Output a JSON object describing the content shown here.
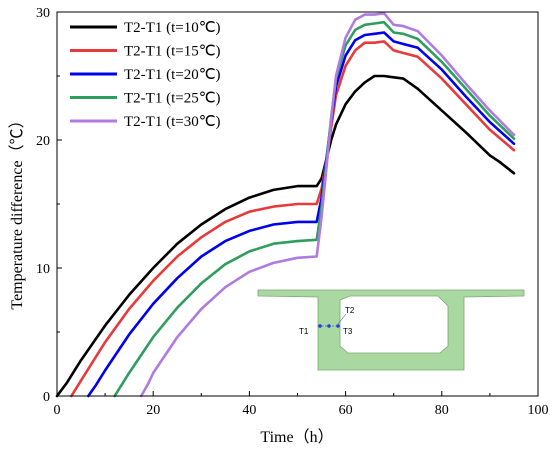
{
  "chart_data": {
    "type": "line",
    "xlabel": "Time（h）",
    "ylabel": "Temperature difference（℃）",
    "xlim": [
      0,
      100
    ],
    "ylim": [
      0,
      30
    ],
    "xticks": [
      "0",
      "20",
      "40",
      "60",
      "80",
      "100"
    ],
    "yticks": [
      "0",
      "10",
      "20",
      "30"
    ],
    "grid": false,
    "legend_position": "top-left",
    "series": [
      {
        "name": "T2-T1 (t=10℃)",
        "color": "#000000",
        "x": [
          0,
          2,
          5,
          10,
          15,
          20,
          25,
          30,
          35,
          40,
          45,
          50,
          54,
          55,
          56,
          57,
          58,
          60,
          62,
          64,
          66,
          68,
          70,
          72,
          75,
          80,
          85,
          90,
          92,
          95
        ],
        "y": [
          0,
          1.0,
          2.8,
          5.5,
          7.9,
          10.0,
          11.9,
          13.4,
          14.6,
          15.5,
          16.1,
          16.4,
          16.4,
          17.0,
          18.5,
          20.0,
          21.2,
          22.8,
          23.8,
          24.5,
          25.0,
          25.0,
          24.9,
          24.8,
          24.0,
          22.3,
          20.6,
          18.8,
          18.3,
          17.4
        ]
      },
      {
        "name": "T2-T1 (t=15℃)",
        "color": "#e83a3a",
        "x": [
          3,
          5,
          10,
          15,
          20,
          25,
          30,
          35,
          40,
          45,
          50,
          54,
          55,
          56,
          57,
          58,
          60,
          62,
          64,
          66,
          68,
          70,
          72,
          75,
          80,
          85,
          90,
          95
        ],
        "y": [
          0,
          1.2,
          4.2,
          6.8,
          9.0,
          10.9,
          12.4,
          13.6,
          14.4,
          14.8,
          15.0,
          15.0,
          16.2,
          18.5,
          21.0,
          23.5,
          25.8,
          27.0,
          27.6,
          27.6,
          27.7,
          27.0,
          26.8,
          26.5,
          24.8,
          22.8,
          20.8,
          19.2
        ]
      },
      {
        "name": "T2-T1 (t=20℃)",
        "color": "#0000ee",
        "x": [
          6.5,
          8,
          10,
          15,
          20,
          25,
          30,
          35,
          40,
          45,
          50,
          54,
          55,
          56,
          57,
          58,
          60,
          62,
          64,
          66,
          68,
          70,
          72,
          75,
          80,
          85,
          90,
          95
        ],
        "y": [
          0,
          0.8,
          2.0,
          4.8,
          7.2,
          9.2,
          10.9,
          12.1,
          12.9,
          13.4,
          13.6,
          13.6,
          15.5,
          18.5,
          21.5,
          24.2,
          26.6,
          27.8,
          28.2,
          28.3,
          28.4,
          27.7,
          27.5,
          27.2,
          25.5,
          23.4,
          21.4,
          19.7
        ]
      },
      {
        "name": "T2-T1 (t=25℃)",
        "color": "#2e9e5e",
        "x": [
          12,
          13,
          15,
          20,
          25,
          30,
          35,
          40,
          45,
          50,
          54,
          55,
          56,
          57,
          58,
          60,
          62,
          64,
          66,
          68,
          70,
          72,
          75,
          80,
          85,
          90,
          95
        ],
        "y": [
          0,
          0.6,
          1.8,
          4.6,
          6.9,
          8.8,
          10.3,
          11.3,
          11.9,
          12.1,
          12.2,
          14.8,
          18.2,
          21.8,
          24.8,
          27.4,
          28.6,
          29.0,
          29.1,
          29.2,
          28.4,
          28.3,
          27.9,
          26.1,
          24.0,
          21.9,
          20.1
        ]
      },
      {
        "name": "T2-T1 (t=30℃)",
        "color": "#b07be0",
        "x": [
          17.5,
          19,
          20,
          25,
          30,
          35,
          40,
          45,
          50,
          54,
          55,
          56,
          57,
          58,
          60,
          62,
          64,
          66,
          68,
          70,
          72,
          75,
          80,
          85,
          90,
          95
        ],
        "y": [
          0,
          1.0,
          1.8,
          4.6,
          6.8,
          8.5,
          9.7,
          10.4,
          10.8,
          10.9,
          14.0,
          17.8,
          21.6,
          25.0,
          28.0,
          29.4,
          29.8,
          29.8,
          29.9,
          29.0,
          28.9,
          28.5,
          26.6,
          24.4,
          22.3,
          20.4
        ]
      }
    ]
  },
  "inset": {
    "labels": {
      "t1": "T1",
      "t2": "T2",
      "t3": "T3"
    },
    "fill": "#a9d8a0",
    "stroke": "#7aa872"
  }
}
